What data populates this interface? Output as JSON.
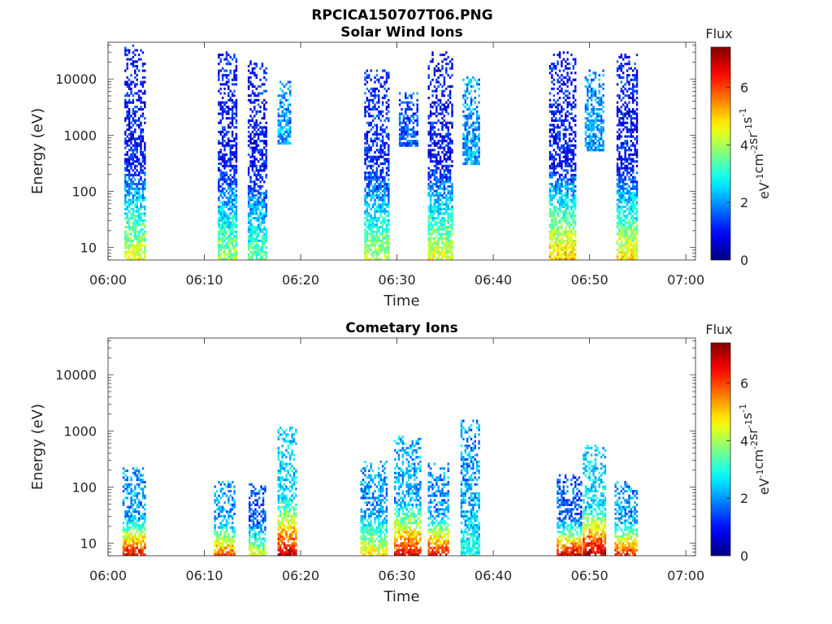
{
  "figure": {
    "title": "RPCICA150707T06.PNG"
  },
  "colorbar": {
    "label": "Flux",
    "unit_parts": [
      "eV",
      "-1",
      "cm",
      "-2",
      "sr",
      "-1",
      "s",
      "-1"
    ],
    "ticks": [
      0,
      2,
      4,
      6
    ],
    "range": [
      0,
      7.4
    ],
    "colormap": "jet"
  },
  "chart_data": [
    {
      "type": "heatmap",
      "title": "Solar Wind Ions",
      "xlabel": "Time",
      "ylabel": "Energy (eV)",
      "xlim": [
        "06:00",
        "07:01"
      ],
      "ylim": [
        6,
        45000
      ],
      "y_scale": "log",
      "x_ticks": [
        "06:00",
        "06:10",
        "06:20",
        "06:30",
        "06:40",
        "06:50",
        "07:00"
      ],
      "y_ticks": [
        10,
        100,
        1000,
        10000
      ],
      "grid": false,
      "bursts": [
        {
          "t_start": "06:01.7",
          "t_end": "06:03.8",
          "e_min": 6,
          "e_max": 40000,
          "low_energy_flux": 4.5,
          "high_energy_flux": 1.0
        },
        {
          "t_start": "06:11.4",
          "t_end": "06:13.3",
          "e_min": 6,
          "e_max": 30000,
          "low_energy_flux": 4.0,
          "high_energy_flux": 1.0
        },
        {
          "t_start": "06:14.5",
          "t_end": "06:16.4",
          "e_min": 6,
          "e_max": 22000,
          "low_energy_flux": 3.5,
          "high_energy_flux": 1.0
        },
        {
          "t_start": "06:17.6",
          "t_end": "06:19.0",
          "e_min": 700,
          "e_max": 9000,
          "low_energy_flux": 2.0,
          "high_energy_flux": 2.0
        },
        {
          "t_start": "06:26.6",
          "t_end": "06:29.2",
          "e_min": 6,
          "e_max": 15000,
          "low_energy_flux": 4.2,
          "high_energy_flux": 1.2
        },
        {
          "t_start": "06:30.2",
          "t_end": "06:32.2",
          "e_min": 600,
          "e_max": 6000,
          "low_energy_flux": 1.5,
          "high_energy_flux": 1.5
        },
        {
          "t_start": "06:33.2",
          "t_end": "06:35.7",
          "e_min": 6,
          "e_max": 30000,
          "low_energy_flux": 4.5,
          "high_energy_flux": 1.0
        },
        {
          "t_start": "06:36.8",
          "t_end": "06:38.6",
          "e_min": 300,
          "e_max": 13000,
          "low_energy_flux": 2.0,
          "high_energy_flux": 2.0
        },
        {
          "t_start": "06:45.8",
          "t_end": "06:48.6",
          "e_min": 6,
          "e_max": 30000,
          "low_energy_flux": 5.2,
          "high_energy_flux": 1.0
        },
        {
          "t_start": "06:49.5",
          "t_end": "06:51.5",
          "e_min": 500,
          "e_max": 15000,
          "low_energy_flux": 2.0,
          "high_energy_flux": 2.0
        },
        {
          "t_start": "06:52.8",
          "t_end": "06:55.0",
          "e_min": 6,
          "e_max": 28000,
          "low_energy_flux": 4.8,
          "high_energy_flux": 1.0
        }
      ]
    },
    {
      "type": "heatmap",
      "title": "Cometary Ions",
      "xlabel": "Time",
      "ylabel": "Energy (eV)",
      "xlim": [
        "06:00",
        "07:01"
      ],
      "ylim": [
        6,
        45000
      ],
      "y_scale": "log",
      "x_ticks": [
        "06:00",
        "06:10",
        "06:20",
        "06:30",
        "06:40",
        "06:50",
        "07:00"
      ],
      "y_ticks": [
        10,
        100,
        1000,
        10000
      ],
      "grid": false,
      "bursts": [
        {
          "t_start": "06:01.5",
          "t_end": "06:03.8",
          "e_min": 6,
          "e_max": 220,
          "low_energy_flux": 6.8,
          "high_energy_flux": 2.0
        },
        {
          "t_start": "06:11.0",
          "t_end": "06:13.2",
          "e_min": 6,
          "e_max": 130,
          "low_energy_flux": 6.0,
          "high_energy_flux": 2.0
        },
        {
          "t_start": "06:14.6",
          "t_end": "06:16.4",
          "e_min": 6,
          "e_max": 120,
          "low_energy_flux": 4.5,
          "high_energy_flux": 1.5
        },
        {
          "t_start": "06:17.6",
          "t_end": "06:19.6",
          "e_min": 6,
          "e_max": 1200,
          "low_energy_flux": 7.0,
          "high_energy_flux": 2.5
        },
        {
          "t_start": "06:26.2",
          "t_end": "06:29.0",
          "e_min": 6,
          "e_max": 300,
          "low_energy_flux": 4.8,
          "high_energy_flux": 2.0
        },
        {
          "t_start": "06:29.7",
          "t_end": "06:32.4",
          "e_min": 6,
          "e_max": 800,
          "low_energy_flux": 6.6,
          "high_energy_flux": 2.2
        },
        {
          "t_start": "06:33.2",
          "t_end": "06:35.4",
          "e_min": 6,
          "e_max": 260,
          "low_energy_flux": 6.8,
          "high_energy_flux": 2.0
        },
        {
          "t_start": "06:36.6",
          "t_end": "06:38.6",
          "e_min": 6,
          "e_max": 1600,
          "low_energy_flux": 3.0,
          "high_energy_flux": 2.0
        },
        {
          "t_start": "06:46.6",
          "t_end": "06:49.2",
          "e_min": 6,
          "e_max": 170,
          "low_energy_flux": 7.0,
          "high_energy_flux": 1.5
        },
        {
          "t_start": "06:49.3",
          "t_end": "06:51.6",
          "e_min": 6,
          "e_max": 550,
          "low_energy_flux": 7.2,
          "high_energy_flux": 2.5
        },
        {
          "t_start": "06:52.6",
          "t_end": "06:55.0",
          "e_min": 6,
          "e_max": 130,
          "low_energy_flux": 6.5,
          "high_energy_flux": 2.0
        }
      ]
    }
  ]
}
